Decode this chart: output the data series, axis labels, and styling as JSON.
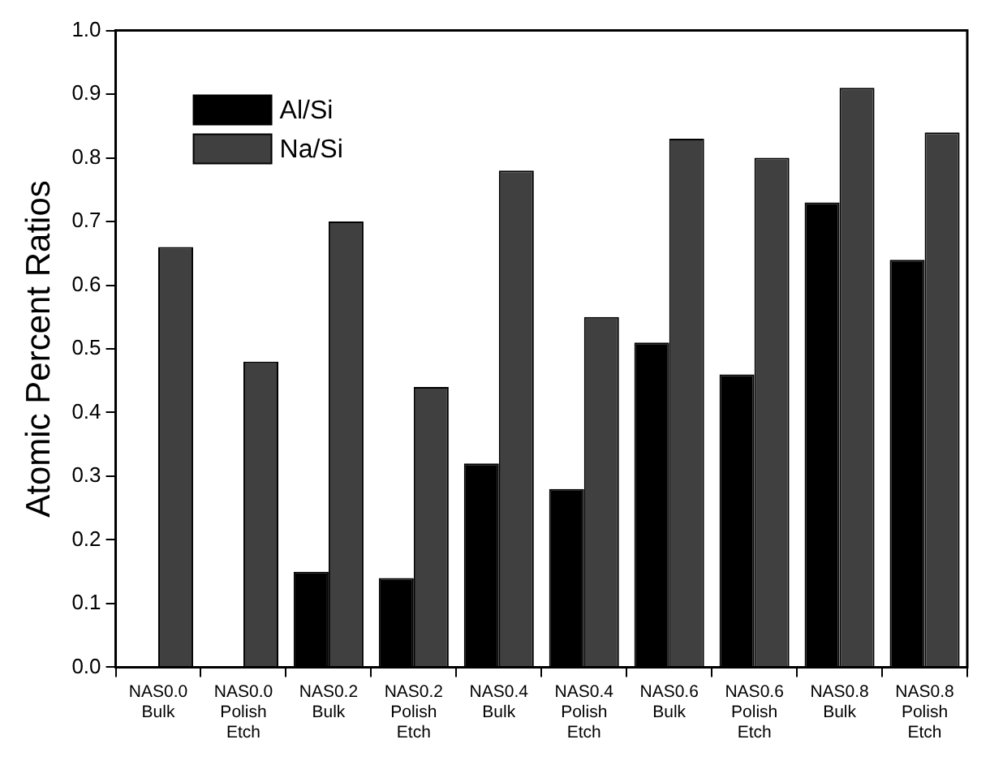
{
  "chart_data": {
    "type": "bar",
    "ylabel": "Atomic Percent Ratios",
    "categories": [
      "NAS0.0 Bulk",
      "NAS0.0 Polish Etch",
      "NAS0.2 Bulk",
      "NAS0.2 Polish Etch",
      "NAS0.4 Bulk",
      "NAS0.4 Polish Etch",
      "NAS0.6 Bulk",
      "NAS0.6 Polish Etch",
      "NAS0.8 Bulk",
      "NAS0.8 Polish Etch"
    ],
    "series": [
      {
        "name": "Al/Si",
        "color": "#000000",
        "values": [
          0,
          0,
          0.15,
          0.14,
          0.32,
          0.28,
          0.51,
          0.46,
          0.73,
          0.64
        ]
      },
      {
        "name": "Na/Si",
        "color": "#404040",
        "values": [
          0.66,
          0.48,
          0.7,
          0.44,
          0.78,
          0.55,
          0.83,
          0.8,
          0.91,
          0.84
        ]
      }
    ],
    "ylim": [
      0,
      1.0
    ],
    "yticks": [
      {
        "value": 0,
        "label": "0.0"
      },
      0.1,
      0.2,
      0.3,
      0.4,
      0.5,
      0.6,
      0.7,
      0.8,
      0.9,
      {
        "value": 1.0,
        "label": "1.0"
      }
    ],
    "grid": false,
    "legend": "top left"
  }
}
